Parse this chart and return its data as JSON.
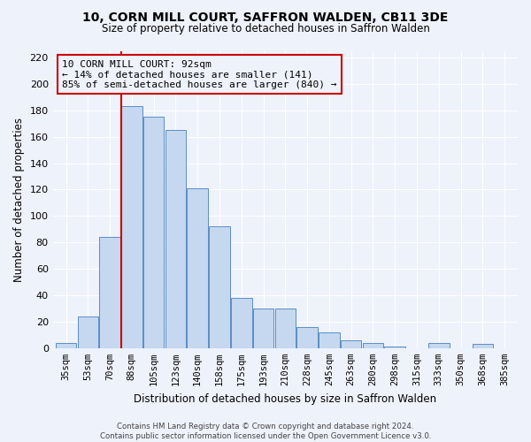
{
  "title": "10, CORN MILL COURT, SAFFRON WALDEN, CB11 3DE",
  "subtitle": "Size of property relative to detached houses in Saffron Walden",
  "xlabel": "Distribution of detached houses by size in Saffron Walden",
  "ylabel": "Number of detached properties",
  "bar_labels": [
    "35sqm",
    "53sqm",
    "70sqm",
    "88sqm",
    "105sqm",
    "123sqm",
    "140sqm",
    "158sqm",
    "175sqm",
    "193sqm",
    "210sqm",
    "228sqm",
    "245sqm",
    "263sqm",
    "280sqm",
    "298sqm",
    "315sqm",
    "333sqm",
    "350sqm",
    "368sqm",
    "385sqm"
  ],
  "bar_values": [
    4,
    24,
    84,
    183,
    175,
    165,
    121,
    92,
    38,
    30,
    30,
    16,
    12,
    6,
    4,
    1,
    0,
    4,
    0,
    3,
    0
  ],
  "bar_color": "#c5d8f0",
  "bar_edge_color": "#5b8ec4",
  "ylim": [
    0,
    225
  ],
  "yticks": [
    0,
    20,
    40,
    60,
    80,
    100,
    120,
    140,
    160,
    180,
    200,
    220
  ],
  "property_line_index": 3,
  "property_line_color": "#cc0000",
  "annotation_title": "10 CORN MILL COURT: 92sqm",
  "annotation_line1": "← 14% of detached houses are smaller (141)",
  "annotation_line2": "85% of semi-detached houses are larger (840) →",
  "annotation_box_color": "#cc0000",
  "footer_line1": "Contains HM Land Registry data © Crown copyright and database right 2024.",
  "footer_line2": "Contains public sector information licensed under the Open Government Licence v3.0.",
  "bg_color": "#eef2fb"
}
